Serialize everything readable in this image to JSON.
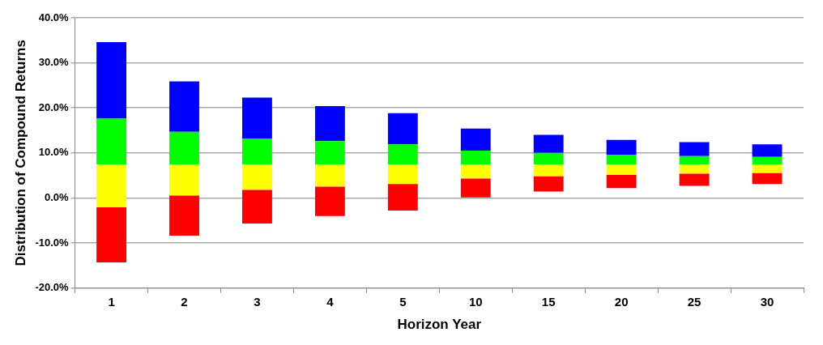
{
  "chart_data": {
    "type": "bar",
    "xlabel": "Horizon Year",
    "ylabel": "Distribution of Compound Returns",
    "categories": [
      "1",
      "2",
      "3",
      "4",
      "5",
      "10",
      "15",
      "20",
      "25",
      "30"
    ],
    "series": [
      {
        "color": "#ff0000",
        "base": [
          -14.3,
          -8.4,
          -5.7,
          -4.0,
          -2.8,
          0.1,
          1.4,
          2.2,
          2.7,
          3.1
        ],
        "values": [
          12.2,
          8.9,
          7.5,
          6.5,
          5.9,
          4.2,
          3.4,
          2.9,
          2.7,
          2.4
        ]
      },
      {
        "color": "#ffff00",
        "base": [
          -2.1,
          0.5,
          1.8,
          2.5,
          3.1,
          4.3,
          4.8,
          5.1,
          5.4,
          5.5
        ],
        "values": [
          9.5,
          6.9,
          5.6,
          4.9,
          4.3,
          3.1,
          2.6,
          2.3,
          2.0,
          1.9
        ]
      },
      {
        "color": "#00ff00",
        "base": [
          7.4,
          7.4,
          7.4,
          7.4,
          7.4,
          7.4,
          7.4,
          7.4,
          7.4,
          7.4
        ],
        "values": [
          10.2,
          7.3,
          5.7,
          5.2,
          4.5,
          3.1,
          2.6,
          2.2,
          1.9,
          1.7
        ]
      },
      {
        "color": "#0000ff",
        "base": [
          17.6,
          14.7,
          13.1,
          12.6,
          11.9,
          10.5,
          10.0,
          9.6,
          9.3,
          9.1
        ],
        "values": [
          17.0,
          11.2,
          9.2,
          7.8,
          6.9,
          4.9,
          4.0,
          3.3,
          3.1,
          2.8
        ]
      }
    ],
    "ylim": [
      -20,
      40
    ],
    "yticks": [
      {
        "value": -20,
        "label": "-20.0%"
      },
      {
        "value": -10,
        "label": "-10.0%"
      },
      {
        "value": 0,
        "label": "0.0%"
      },
      {
        "value": 10,
        "label": "10.0%"
      },
      {
        "value": 20,
        "label": "20.0%"
      },
      {
        "value": 30,
        "label": "30.0%"
      },
      {
        "value": 40,
        "label": "40.0%"
      }
    ],
    "grid": "y",
    "legend": false
  }
}
